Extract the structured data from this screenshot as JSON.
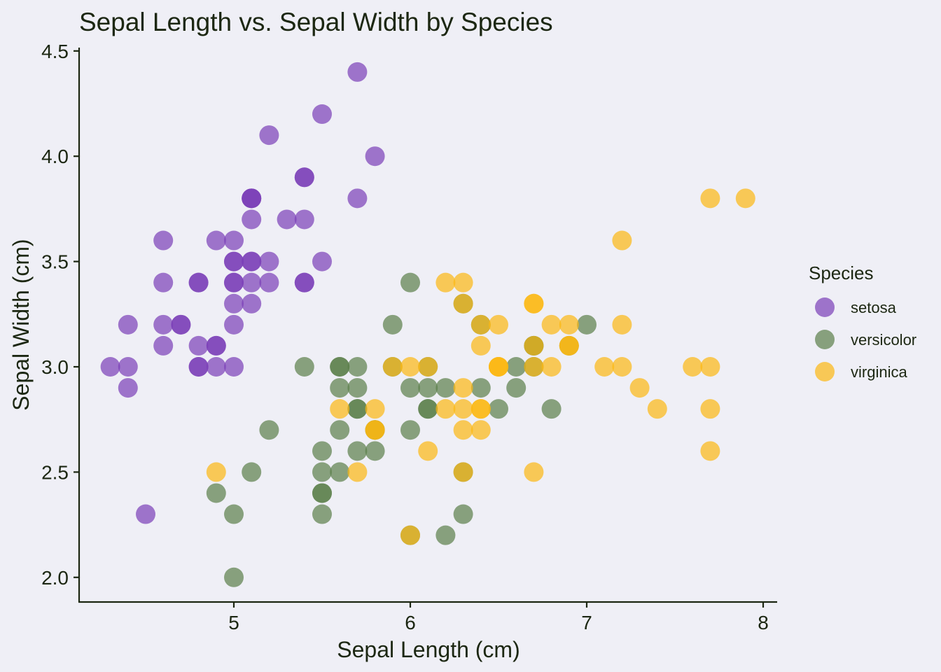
{
  "chart_data": {
    "type": "scatter",
    "title": "Sepal Length vs. Sepal Width by Species",
    "xlabel": "Sepal Length (cm)",
    "ylabel": "Sepal Width (cm)",
    "xlim": [
      4.13,
      8.08
    ],
    "ylim": [
      1.88,
      4.52
    ],
    "xticks": [
      5,
      6,
      7,
      8
    ],
    "xtick_labels": [
      "5",
      "6",
      "7",
      "8"
    ],
    "yticks": [
      2.0,
      2.5,
      3.0,
      3.5,
      4.0,
      4.5
    ],
    "ytick_labels": [
      "2.0",
      "2.5",
      "3.0",
      "3.5",
      "4.0",
      "4.5"
    ],
    "grid": false,
    "legend": {
      "title": "Species",
      "placement": "right"
    },
    "marker_alpha": 0.7,
    "series": [
      {
        "name": "setosa",
        "color": "#7B3FB8",
        "x": [
          5.1,
          4.9,
          4.7,
          4.6,
          5.0,
          5.4,
          4.6,
          5.0,
          4.4,
          4.9,
          5.4,
          4.8,
          4.8,
          4.3,
          5.8,
          5.7,
          5.4,
          5.1,
          5.7,
          5.1,
          5.4,
          5.1,
          4.6,
          5.1,
          4.8,
          5.0,
          5.0,
          5.2,
          5.2,
          4.7,
          4.8,
          5.4,
          5.2,
          5.5,
          4.9,
          5.0,
          5.5,
          4.9,
          4.4,
          5.1,
          5.0,
          4.5,
          4.4,
          5.0,
          5.1,
          4.8,
          5.1,
          4.6,
          5.3,
          5.0
        ],
        "y": [
          3.5,
          3.0,
          3.2,
          3.1,
          3.6,
          3.9,
          3.4,
          3.4,
          2.9,
          3.1,
          3.7,
          3.4,
          3.0,
          3.0,
          4.0,
          4.4,
          3.9,
          3.5,
          3.8,
          3.8,
          3.4,
          3.7,
          3.6,
          3.3,
          3.4,
          3.0,
          3.4,
          3.5,
          3.4,
          3.2,
          3.1,
          3.4,
          4.1,
          4.2,
          3.1,
          3.2,
          3.5,
          3.6,
          3.0,
          3.4,
          3.5,
          2.3,
          3.2,
          3.5,
          3.8,
          3.0,
          3.8,
          3.2,
          3.7,
          3.3
        ]
      },
      {
        "name": "versicolor",
        "color": "#5B7F4A",
        "x": [
          7.0,
          6.4,
          6.9,
          5.5,
          6.5,
          5.7,
          6.3,
          4.9,
          6.6,
          5.2,
          5.0,
          5.9,
          6.0,
          6.1,
          5.6,
          6.7,
          5.6,
          5.8,
          6.2,
          5.6,
          5.9,
          6.1,
          6.3,
          6.1,
          6.4,
          6.6,
          6.8,
          6.7,
          6.0,
          5.7,
          5.5,
          5.5,
          5.8,
          6.0,
          5.4,
          6.0,
          6.7,
          6.3,
          5.6,
          5.5,
          5.5,
          6.1,
          5.8,
          5.0,
          5.6,
          5.7,
          5.7,
          6.2,
          5.1,
          5.7
        ],
        "y": [
          3.2,
          3.2,
          3.1,
          2.3,
          2.8,
          2.8,
          3.3,
          2.4,
          2.9,
          2.7,
          2.0,
          3.0,
          2.2,
          2.9,
          2.9,
          3.1,
          3.0,
          2.7,
          2.2,
          2.5,
          3.2,
          2.8,
          2.5,
          2.8,
          2.9,
          3.0,
          2.8,
          3.0,
          2.9,
          2.6,
          2.4,
          2.4,
          2.7,
          2.7,
          3.0,
          3.4,
          3.1,
          2.3,
          3.0,
          2.5,
          2.6,
          3.0,
          2.6,
          2.3,
          2.7,
          3.0,
          2.9,
          2.9,
          2.5,
          2.8
        ]
      },
      {
        "name": "virginica",
        "color": "#FCB812",
        "x": [
          6.3,
          5.8,
          7.1,
          6.3,
          6.5,
          7.6,
          4.9,
          7.3,
          6.7,
          7.2,
          6.5,
          6.4,
          6.8,
          5.7,
          5.8,
          6.4,
          6.5,
          7.7,
          7.7,
          6.0,
          6.9,
          5.6,
          7.7,
          6.3,
          6.7,
          7.2,
          6.2,
          6.1,
          6.4,
          7.2,
          7.4,
          7.9,
          6.4,
          6.3,
          6.1,
          7.7,
          6.3,
          6.4,
          6.0,
          6.9,
          6.7,
          6.9,
          5.8,
          6.8,
          6.7,
          6.7,
          6.3,
          6.5,
          6.2,
          5.9
        ],
        "y": [
          3.3,
          2.7,
          3.0,
          2.9,
          3.0,
          3.0,
          2.5,
          2.9,
          2.5,
          3.6,
          3.2,
          2.7,
          3.0,
          2.5,
          2.8,
          3.2,
          3.0,
          3.8,
          2.6,
          2.2,
          3.2,
          2.8,
          2.8,
          2.7,
          3.3,
          3.2,
          2.8,
          3.0,
          2.8,
          3.0,
          2.8,
          3.8,
          2.8,
          2.8,
          2.6,
          3.0,
          3.4,
          3.1,
          3.0,
          3.1,
          3.1,
          3.1,
          2.7,
          3.2,
          3.3,
          3.0,
          2.5,
          3.0,
          3.4,
          3.0
        ]
      }
    ]
  }
}
